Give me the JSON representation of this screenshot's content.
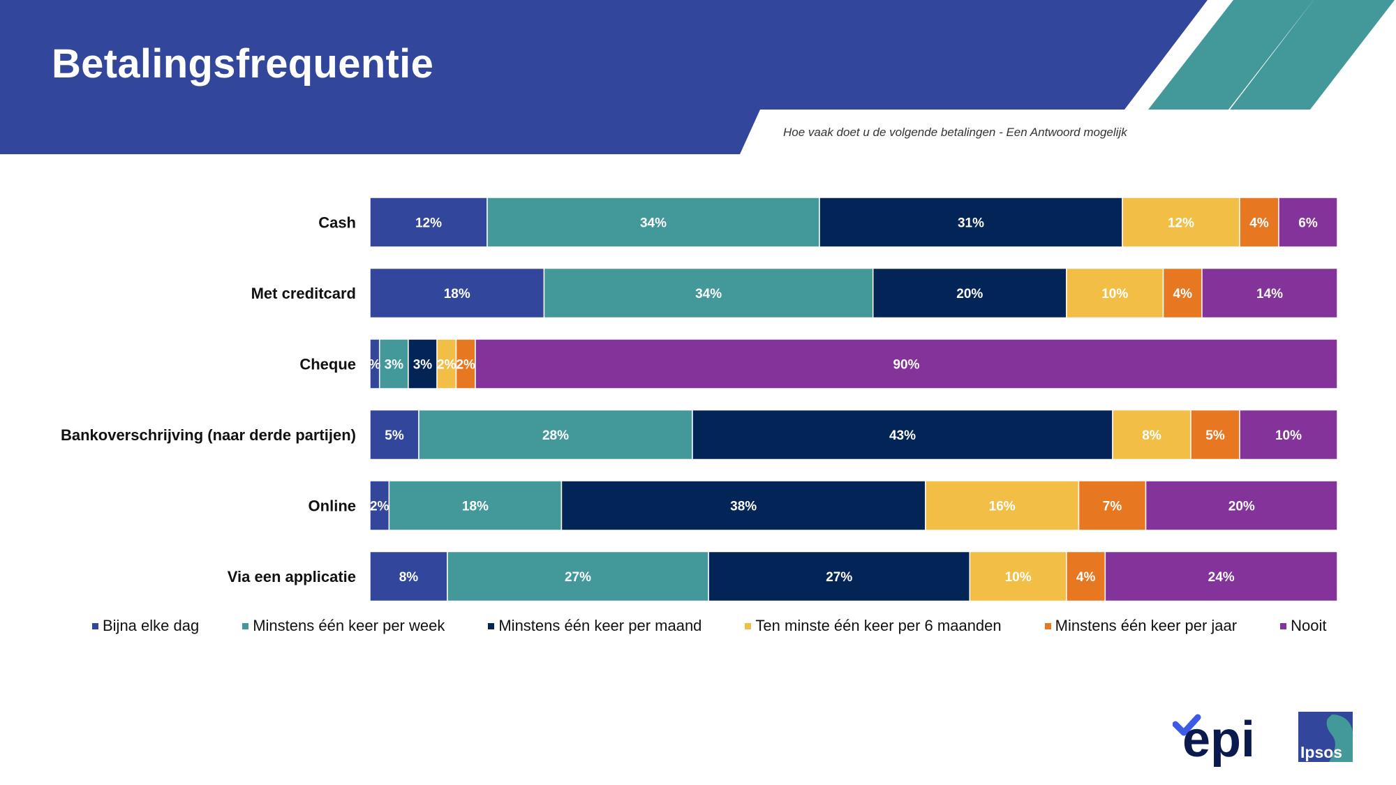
{
  "title": "Betalingsfrequentie",
  "subtitle": "Hoe vaak doet u de volgende betalingen - Een Antwoord mogelijk",
  "logos": {
    "epi": "epi",
    "ipsos": "Ipsos"
  },
  "colors": {
    "header": "#32469B",
    "accent_stripes": "#43999A"
  },
  "chart_data": {
    "type": "bar",
    "orientation": "horizontal",
    "stacked": true,
    "normalized_percent": true,
    "categories": [
      "Cash",
      "Met creditcard",
      "Cheque",
      "Bankoverschrijving (naar derde partijen)",
      "Online",
      "Via een applicatie"
    ],
    "series": [
      {
        "name": "Bijna elke dag",
        "color": "#32469B",
        "values": [
          12,
          18,
          1,
          5,
          2,
          8
        ],
        "labels": [
          "12%",
          "18%",
          "%",
          "5%",
          "2%",
          "8%"
        ]
      },
      {
        "name": "Minstens één keer per week",
        "color": "#43999A",
        "values": [
          34,
          34,
          3,
          28,
          18,
          27
        ],
        "labels": [
          "34%",
          "34%",
          "3%",
          "28%",
          "18%",
          "27%"
        ]
      },
      {
        "name": "Minstens één keer per maand",
        "color": "#032456",
        "values": [
          31,
          20,
          3,
          43,
          38,
          27
        ],
        "labels": [
          "31%",
          "20%",
          "3%",
          "43%",
          "38%",
          "27%"
        ]
      },
      {
        "name": "Ten minste één keer per 6 maanden",
        "color": "#F2BE46",
        "values": [
          12,
          10,
          2,
          8,
          16,
          10
        ],
        "labels": [
          "12%",
          "10%",
          "2%",
          "8%",
          "16%",
          "10%"
        ]
      },
      {
        "name": "Minstens één keer per jaar",
        "color": "#E87722",
        "values": [
          4,
          4,
          2,
          5,
          7,
          4
        ],
        "labels": [
          "4%",
          "4%",
          "2%",
          "5%",
          "7%",
          "4%"
        ]
      },
      {
        "name": "Nooit",
        "color": "#833399",
        "values": [
          6,
          14,
          90,
          10,
          20,
          24
        ],
        "labels": [
          "6%",
          "14%",
          "90%",
          "10%",
          "20%",
          "24%"
        ]
      }
    ],
    "legend_position": "bottom",
    "grid": false
  }
}
